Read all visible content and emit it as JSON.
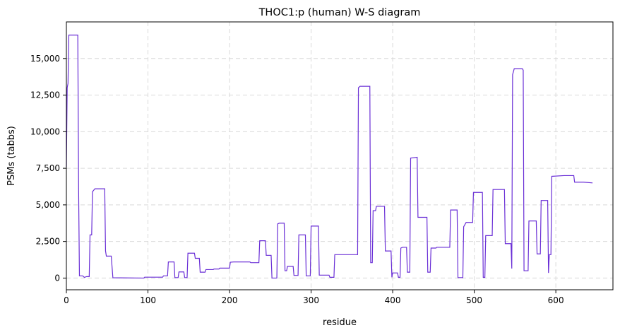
{
  "chart_data": {
    "type": "line",
    "title": "THOC1:p (human) W-S diagram",
    "xlabel": "residue",
    "ylabel": "PSMs (tabbs)",
    "xlim": [
      0,
      670
    ],
    "ylim": [
      -800,
      17500
    ],
    "x_ticks": [
      0,
      100,
      200,
      300,
      400,
      500,
      600
    ],
    "y_ticks": [
      0,
      2500,
      5000,
      7500,
      10000,
      12500,
      15000
    ],
    "y_tick_labels": [
      "0",
      "2,500",
      "5,000",
      "7,500",
      "10,000",
      "12,500",
      "15,000"
    ],
    "grid": true,
    "line_color": "#6a2fd6",
    "series": [
      {
        "points": [
          [
            0,
            7600
          ],
          [
            1,
            13000
          ],
          [
            2,
            13300
          ],
          [
            3,
            16600
          ],
          [
            14,
            16600
          ],
          [
            15,
            6000
          ],
          [
            16,
            150
          ],
          [
            20,
            150
          ],
          [
            22,
            50
          ],
          [
            25,
            100
          ],
          [
            28,
            100
          ],
          [
            29,
            2950
          ],
          [
            31,
            2950
          ],
          [
            32,
            5900
          ],
          [
            35,
            6100
          ],
          [
            47,
            6100
          ],
          [
            48,
            1850
          ],
          [
            49,
            1500
          ],
          [
            55,
            1500
          ],
          [
            57,
            20
          ],
          [
            95,
            0
          ],
          [
            96,
            60
          ],
          [
            118,
            60
          ],
          [
            119,
            150
          ],
          [
            124,
            150
          ],
          [
            125,
            1100
          ],
          [
            132,
            1100
          ],
          [
            133,
            30
          ],
          [
            137,
            30
          ],
          [
            138,
            420
          ],
          [
            144,
            420
          ],
          [
            145,
            30
          ],
          [
            148,
            30
          ],
          [
            149,
            1700
          ],
          [
            157,
            1700
          ],
          [
            158,
            1350
          ],
          [
            163,
            1350
          ],
          [
            164,
            400
          ],
          [
            170,
            400
          ],
          [
            171,
            580
          ],
          [
            180,
            580
          ],
          [
            181,
            620
          ],
          [
            187,
            620
          ],
          [
            188,
            680
          ],
          [
            200,
            680
          ],
          [
            201,
            1080
          ],
          [
            205,
            1100
          ],
          [
            225,
            1100
          ],
          [
            226,
            1050
          ],
          [
            236,
            1050
          ],
          [
            237,
            2550
          ],
          [
            244,
            2550
          ],
          [
            245,
            1550
          ],
          [
            251,
            1550
          ],
          [
            252,
            0
          ],
          [
            258,
            0
          ],
          [
            259,
            3700
          ],
          [
            261,
            3750
          ],
          [
            267,
            3750
          ],
          [
            268,
            500
          ],
          [
            270,
            500
          ],
          [
            271,
            800
          ],
          [
            278,
            800
          ],
          [
            279,
            180
          ],
          [
            284,
            180
          ],
          [
            285,
            2950
          ],
          [
            293,
            2950
          ],
          [
            294,
            150
          ],
          [
            299,
            150
          ],
          [
            300,
            3550
          ],
          [
            309,
            3550
          ],
          [
            310,
            200
          ],
          [
            322,
            200
          ],
          [
            323,
            50
          ],
          [
            328,
            50
          ],
          [
            329,
            1600
          ],
          [
            347,
            1600
          ],
          [
            357,
            1600
          ],
          [
            358,
            13000
          ],
          [
            360,
            13100
          ],
          [
            372,
            13100
          ],
          [
            373,
            1050
          ],
          [
            375,
            1050
          ],
          [
            376,
            4600
          ],
          [
            379,
            4600
          ],
          [
            380,
            4900
          ],
          [
            390,
            4900
          ],
          [
            391,
            1850
          ],
          [
            398,
            1850
          ],
          [
            399,
            50
          ],
          [
            400,
            350
          ],
          [
            406,
            350
          ],
          [
            407,
            50
          ],
          [
            409,
            50
          ],
          [
            410,
            2050
          ],
          [
            412,
            2100
          ],
          [
            417,
            2100
          ],
          [
            418,
            400
          ],
          [
            421,
            400
          ],
          [
            422,
            8200
          ],
          [
            430,
            8250
          ],
          [
            431,
            4150
          ],
          [
            442,
            4150
          ],
          [
            443,
            400
          ],
          [
            446,
            400
          ],
          [
            447,
            2050
          ],
          [
            453,
            2050
          ],
          [
            454,
            2100
          ],
          [
            470,
            2100
          ],
          [
            471,
            4650
          ],
          [
            479,
            4650
          ],
          [
            480,
            30
          ],
          [
            486,
            30
          ],
          [
            487,
            3500
          ],
          [
            490,
            3800
          ],
          [
            498,
            3800
          ],
          [
            499,
            5850
          ],
          [
            510,
            5850
          ],
          [
            511,
            50
          ],
          [
            513,
            50
          ],
          [
            514,
            2900
          ],
          [
            522,
            2900
          ],
          [
            523,
            6050
          ],
          [
            537,
            6050
          ],
          [
            538,
            2350
          ],
          [
            545,
            2350
          ],
          [
            546,
            650
          ],
          [
            547,
            13900
          ],
          [
            549,
            14300
          ],
          [
            559,
            14300
          ],
          [
            560,
            14200
          ],
          [
            561,
            500
          ],
          [
            566,
            500
          ],
          [
            567,
            3900
          ],
          [
            576,
            3900
          ],
          [
            577,
            1650
          ],
          [
            581,
            1650
          ],
          [
            582,
            5300
          ],
          [
            590,
            5300
          ],
          [
            591,
            350
          ],
          [
            592,
            1600
          ],
          [
            594,
            1600
          ],
          [
            595,
            6950
          ],
          [
            610,
            7000
          ],
          [
            622,
            7000
          ],
          [
            623,
            6550
          ],
          [
            634,
            6550
          ],
          [
            645,
            6500
          ]
        ]
      }
    ]
  }
}
